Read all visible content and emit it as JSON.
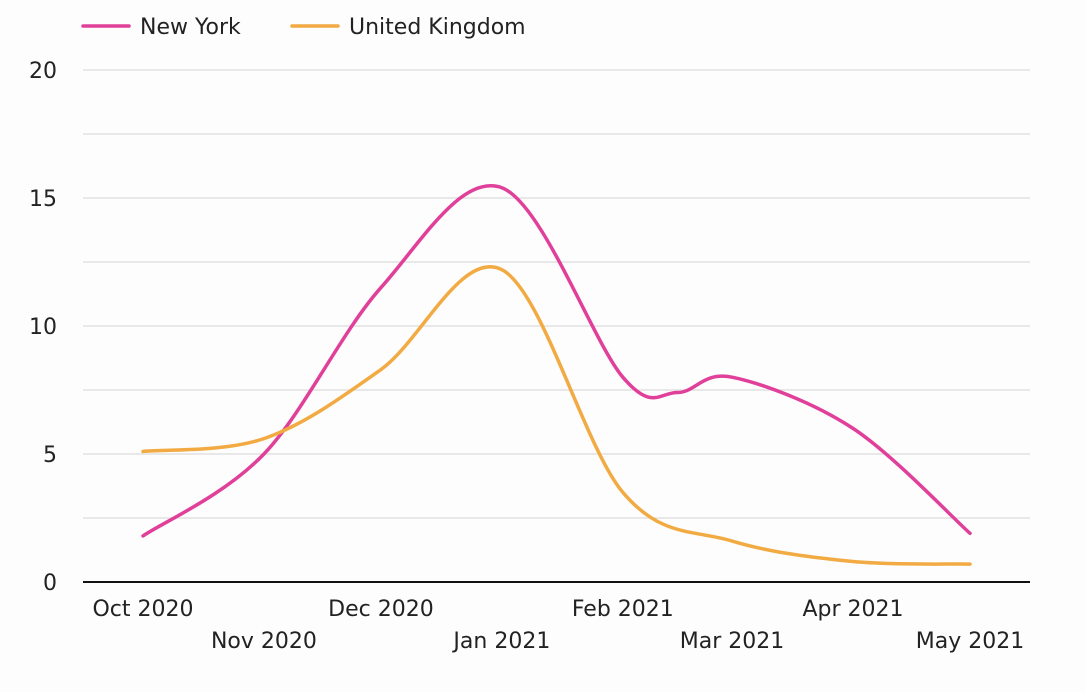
{
  "chart_data": {
    "type": "line",
    "title": "",
    "xlabel": "",
    "ylabel": "",
    "x_tick_labels": [
      "Oct 2020",
      "Nov 2020",
      "Dec 2020",
      "Jan 2021",
      "Feb 2021",
      "Mar 2021",
      "Apr 2021",
      "May 2021"
    ],
    "ylim": [
      0,
      20
    ],
    "y_ticks": [
      0,
      5,
      10,
      15,
      20
    ],
    "y_tick_labels": [
      "0",
      "5",
      "10",
      "15",
      "20"
    ],
    "grid": true,
    "legend_position": "top-left",
    "series": [
      {
        "name": "New York",
        "color": "#e0409a",
        "points": [
          [
            "2020-10-01",
            1.8
          ],
          [
            "2020-11-01",
            5.0
          ],
          [
            "2020-12-01",
            11.5
          ],
          [
            "2021-01-01",
            15.4
          ],
          [
            "2021-02-01",
            8.0
          ],
          [
            "2021-02-15",
            7.4
          ],
          [
            "2021-03-01",
            8.0
          ],
          [
            "2021-04-01",
            6.0
          ],
          [
            "2021-05-01",
            1.9
          ]
        ]
      },
      {
        "name": "United Kingdom",
        "color": "#f2aa42",
        "points": [
          [
            "2020-10-01",
            5.1
          ],
          [
            "2020-11-01",
            5.6
          ],
          [
            "2020-12-01",
            8.3
          ],
          [
            "2021-01-01",
            12.2
          ],
          [
            "2021-02-01",
            3.5
          ],
          [
            "2021-03-01",
            1.6
          ],
          [
            "2021-04-01",
            0.8
          ],
          [
            "2021-05-01",
            0.7
          ]
        ]
      }
    ]
  }
}
